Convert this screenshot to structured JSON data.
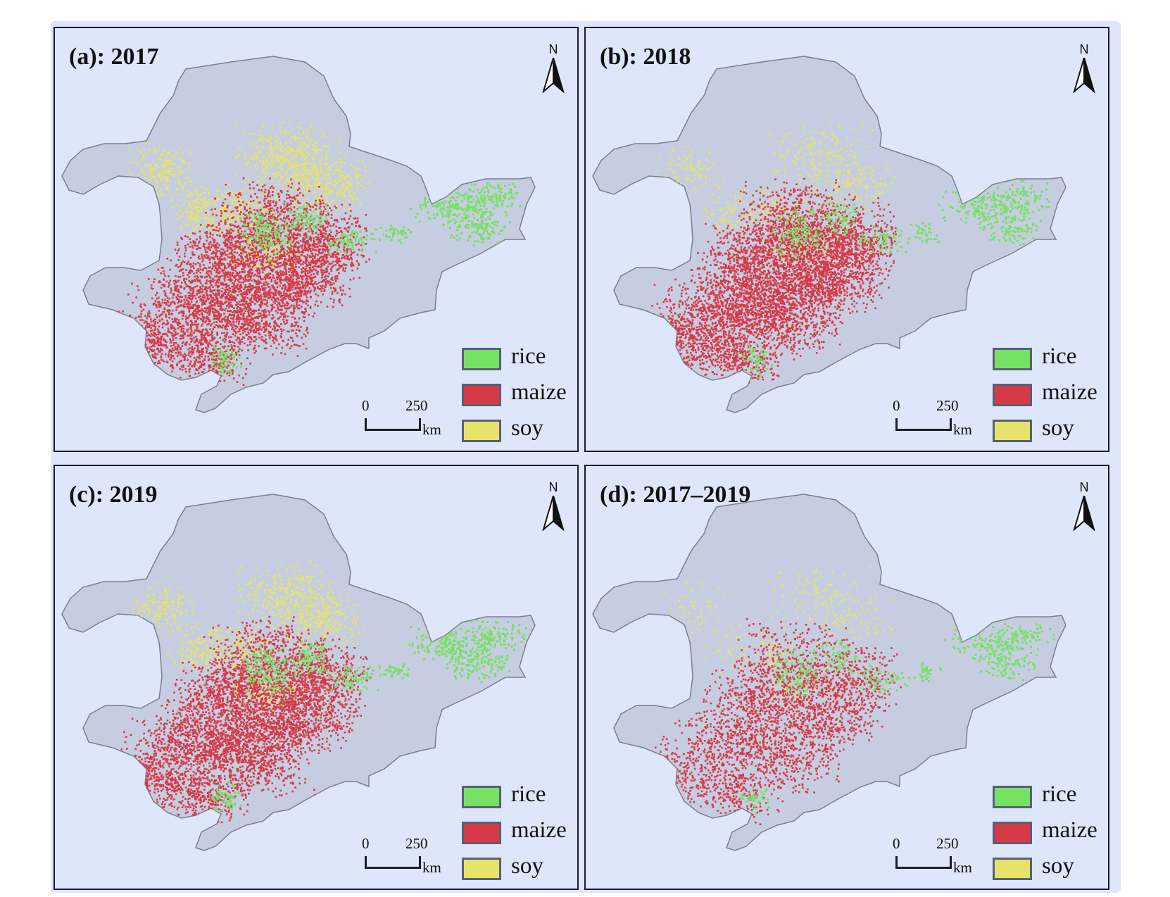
{
  "panels": [
    {
      "title": "(a): 2017",
      "key": "a"
    },
    {
      "title": "(b): 2018",
      "key": "b"
    },
    {
      "title": "(c): 2019",
      "key": "c"
    },
    {
      "title": "(d): 2017–2019",
      "key": "d"
    }
  ],
  "north_label": "N",
  "legend": [
    {
      "label": "rice",
      "color": "#77e166"
    },
    {
      "label": "maize",
      "color": "#d63a47"
    },
    {
      "label": "soy",
      "color": "#e5e36a"
    }
  ],
  "scalebar": {
    "zero": "0",
    "distance": "250",
    "unit": "km"
  },
  "colors": {
    "background": "#dde6fa",
    "land": "#c6cde0",
    "border": "#7d7f8d",
    "rice": "#77e166",
    "maize": "#d63a47",
    "soy": "#e5e36a"
  }
}
